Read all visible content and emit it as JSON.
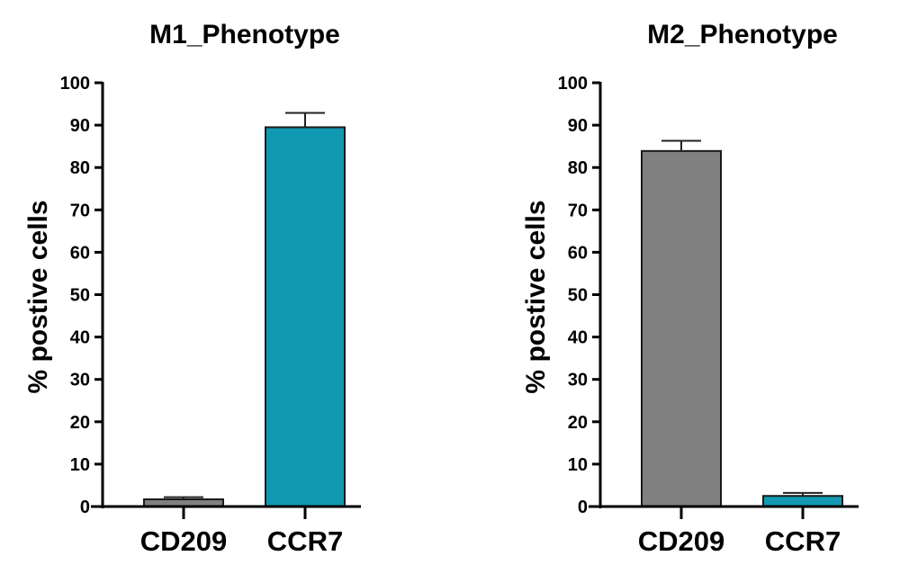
{
  "chart_data": [
    {
      "type": "bar",
      "title": "M1_Phenotype",
      "ylabel": "% postive cells",
      "xlabel": "",
      "ylim": [
        0,
        100
      ],
      "yticks": [
        "0",
        "10",
        "20",
        "30",
        "40",
        "50",
        "60",
        "70",
        "80",
        "90",
        "100"
      ],
      "categories": [
        "CD209",
        "CCR7"
      ],
      "values": [
        1.7,
        89.5
      ],
      "error_upper": [
        0.5,
        3.4
      ],
      "colors": [
        "#808080",
        "#1199b2"
      ]
    },
    {
      "type": "bar",
      "title": "M2_Phenotype",
      "ylabel": "% postive cells",
      "xlabel": "",
      "ylim": [
        0,
        100
      ],
      "yticks": [
        "0",
        "10",
        "20",
        "30",
        "40",
        "50",
        "60",
        "70",
        "80",
        "90",
        "100"
      ],
      "categories": [
        "CD209",
        "CCR7"
      ],
      "values": [
        83.9,
        2.5
      ],
      "error_upper": [
        2.4,
        0.7
      ],
      "colors": [
        "#808080",
        "#1199b2"
      ]
    }
  ]
}
